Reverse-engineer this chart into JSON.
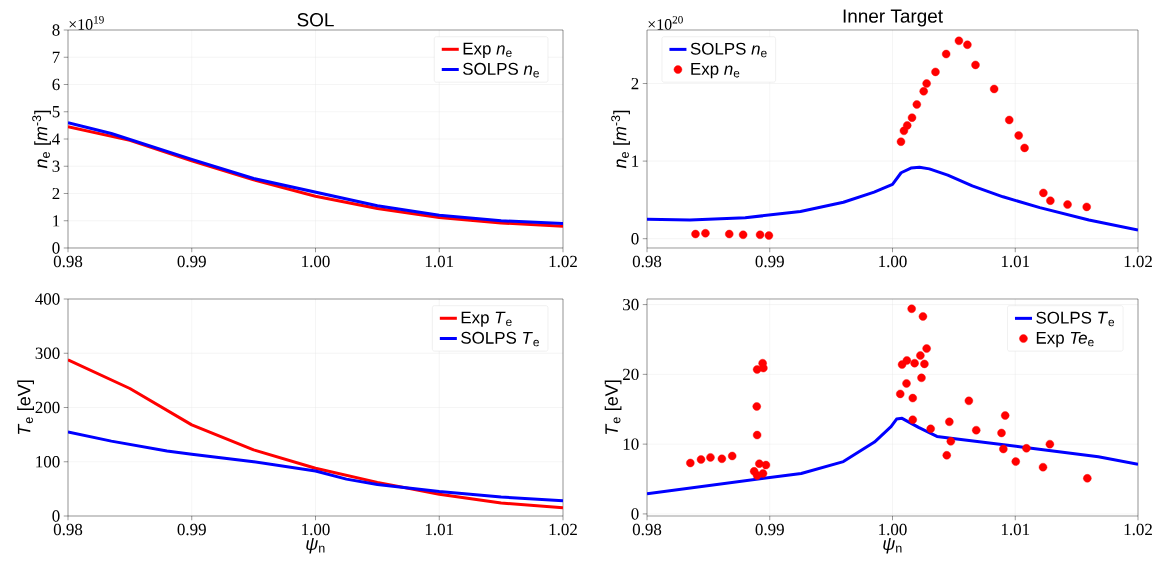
{
  "chart_data": [
    {
      "type": "line",
      "title": "SOL",
      "ylabel": "*n*$_{e}$ [*m*$^{-3}$]",
      "annotations": [
        "×10$^{19}$"
      ],
      "xlim": [
        0.98,
        1.02
      ],
      "xticks": [
        {
          "value": 0.98,
          "label": "0.98"
        },
        {
          "value": 0.99,
          "label": "0.99"
        },
        {
          "value": 1.0,
          "label": "1.00"
        },
        {
          "value": 1.01,
          "label": "1.01"
        },
        {
          "value": 1.02,
          "label": "1.02"
        }
      ],
      "ylim": [
        0,
        8
      ],
      "yticks": [
        0,
        1,
        2,
        3,
        4,
        5,
        6,
        7,
        8
      ],
      "grid": true,
      "legend": "top right",
      "tick_labels": "xy",
      "series": [
        {
          "name": "Exp *n*$_{e}$",
          "color": "#ff0000",
          "x": [
            0.98,
            0.985,
            0.99,
            0.995,
            1.0,
            1.005,
            1.01,
            1.015,
            1.02
          ],
          "values": [
            4.45,
            3.95,
            3.2,
            2.5,
            1.9,
            1.45,
            1.12,
            0.92,
            0.8
          ]
        },
        {
          "name": "SOLPS *n*$_{e}$",
          "color": "#0000ff",
          "x": [
            0.98,
            0.9835,
            0.99,
            0.995,
            1.0,
            1.005,
            1.01,
            1.015,
            1.02
          ],
          "values": [
            4.6,
            4.2,
            3.25,
            2.55,
            2.05,
            1.55,
            1.2,
            1.0,
            0.9
          ]
        }
      ]
    },
    {
      "type": "line",
      "title": "Inner Target",
      "ylabel": "*n*$_{e}$ [*m*$^{-3}$]",
      "annotations": [
        "×10$^{20}$"
      ],
      "xlim": [
        0.98,
        1.02
      ],
      "xticks": [
        {
          "value": 0.98,
          "label": "0.98"
        },
        {
          "value": 0.99,
          "label": "0.99"
        },
        {
          "value": 1.0,
          "label": "1.00"
        },
        {
          "value": 1.01,
          "label": "1.01"
        },
        {
          "value": 1.02,
          "label": "1.02"
        }
      ],
      "ylim": [
        -0.12,
        2.69
      ],
      "yticks": [
        0,
        1,
        2
      ],
      "grid": true,
      "legend": "top left",
      "series": [
        {
          "name": "SOLPS *n*$_{e}$",
          "color": "#0000ff",
          "x": [
            0.98,
            0.9835,
            0.988,
            0.9925,
            0.996,
            0.9985,
            1.0,
            1.0007,
            1.0015,
            1.0022,
            1.003,
            1.0045,
            1.0065,
            1.009,
            1.012,
            1.016,
            1.02
          ],
          "values": [
            0.25,
            0.24,
            0.27,
            0.35,
            0.47,
            0.6,
            0.7,
            0.85,
            0.91,
            0.92,
            0.9,
            0.82,
            0.68,
            0.54,
            0.4,
            0.24,
            0.11
          ]
        },
        {
          "name": "Exp *n*$_{e}$",
          "color": "#ff0000",
          "type": "scatter",
          "marker": "circle",
          "x": [
            0.98395,
            0.98476,
            0.9867,
            0.98783,
            0.98921,
            0.98993,
            1.00069,
            1.00093,
            1.0012,
            1.00159,
            1.00198,
            1.00254,
            1.00278,
            1.0035,
            1.00437,
            1.00541,
            1.0061,
            1.00676,
            1.00828,
            1.00951,
            1.01028,
            1.01076,
            1.01229,
            1.01286,
            1.01426,
            1.01582
          ],
          "values": [
            0.06,
            0.07,
            0.06,
            0.05,
            0.05,
            0.04,
            1.25,
            1.39,
            1.46,
            1.56,
            1.73,
            1.9,
            2.0,
            2.15,
            2.38,
            2.55,
            2.5,
            2.24,
            1.93,
            1.53,
            1.33,
            1.17,
            0.59,
            0.49,
            0.44,
            0.41
          ]
        }
      ]
    },
    {
      "type": "line",
      "xlabel": "*ψ*$_{n}$",
      "ylabel": "*T*$_{e}$ [eV]",
      "xlim": [
        0.98,
        1.02
      ],
      "xticks": [
        {
          "value": 0.98,
          "label": "0.98"
        },
        {
          "value": 0.99,
          "label": "0.99"
        },
        {
          "value": 1.0,
          "label": "1.00"
        },
        {
          "value": 1.01,
          "label": "1.01"
        },
        {
          "value": 1.02,
          "label": "1.02"
        }
      ],
      "ylim": [
        0,
        400
      ],
      "yticks": [
        0,
        100,
        200,
        300,
        400
      ],
      "grid": true,
      "legend": "top right",
      "series": [
        {
          "name": "Exp *T*$_{e}$",
          "color": "#ff0000",
          "x": [
            0.98,
            0.985,
            0.99,
            0.995,
            1.0,
            1.005,
            1.01,
            1.015,
            1.02
          ],
          "values": [
            288,
            235,
            168,
            122,
            88,
            62,
            40,
            24,
            15
          ]
        },
        {
          "name": "SOLPS *T*$_{e}$",
          "color": "#0000ff",
          "x": [
            0.98,
            0.9835,
            0.988,
            0.99,
            0.995,
            1.0,
            1.0025,
            1.005,
            1.01,
            1.015,
            1.02
          ],
          "values": [
            155,
            138,
            120,
            114,
            100,
            83,
            68,
            58,
            45,
            35,
            28
          ]
        }
      ]
    },
    {
      "type": "line",
      "xlabel": "*ψ*$_{n}$",
      "ylabel": "*T*$_{e}$ [eV]",
      "xlim": [
        0.98,
        1.02
      ],
      "xticks": [
        {
          "value": 0.98,
          "label": "0.98"
        },
        {
          "value": 0.99,
          "label": "0.99"
        },
        {
          "value": 1.0,
          "label": "1.00"
        },
        {
          "value": 1.01,
          "label": "1.01"
        },
        {
          "value": 1.02,
          "label": "1.02"
        }
      ],
      "ylim": [
        -0.3,
        30.8
      ],
      "yticks": [
        0,
        10,
        20,
        30
      ],
      "grid": true,
      "legend": "top right",
      "series": [
        {
          "name": "SOLPS *T*$_{e}$",
          "color": "#0000ff",
          "x": [
            0.98,
            0.99256,
            0.996,
            0.99853,
            0.99988,
            1.00033,
            1.00078,
            1.00212,
            1.00362,
            1.00541,
            1.0105,
            1.01677,
            1.02
          ],
          "values": [
            2.9,
            5.8,
            7.5,
            10.3,
            12.5,
            13.6,
            13.7,
            12.4,
            11.1,
            10.7,
            9.6,
            8.2,
            7.1
          ]
        },
        {
          "name": "Exp *Te*$_{e}$",
          "color": "#ff0000",
          "type": "scatter",
          "marker": "circle",
          "x": [
            0.98353,
            0.9844,
            0.98517,
            0.9861,
            0.98694,
            0.98873,
            0.98897,
            0.98894,
            0.98897,
            0.98897,
            0.98942,
            0.98948,
            0.98915,
            0.98969,
            0.98945,
            1.00063,
            1.00078,
            1.00114,
            1.00117,
            1.00156,
            1.00165,
            1.00165,
            1.0018,
            1.00227,
            1.00236,
            1.00248,
            1.0026,
            1.00278,
            1.00311,
            1.00442,
            1.00463,
            1.00475,
            1.00622,
            1.00682,
            1.00888,
            1.00903,
            1.00918,
            1.01004,
            1.01091,
            1.01226,
            1.01282,
            1.01587
          ],
          "values": [
            7.3,
            7.8,
            8.1,
            7.9,
            8.3,
            6.1,
            5.5,
            15.4,
            11.3,
            20.7,
            21.6,
            20.9,
            7.2,
            7.0,
            5.8,
            17.2,
            21.4,
            18.7,
            22.0,
            29.4,
            16.6,
            13.5,
            21.6,
            22.7,
            19.5,
            28.3,
            21.5,
            23.7,
            12.2,
            8.4,
            13.2,
            10.4,
            16.2,
            12.0,
            11.6,
            9.3,
            14.1,
            7.5,
            9.4,
            6.7,
            10.0,
            5.1
          ]
        }
      ]
    }
  ]
}
